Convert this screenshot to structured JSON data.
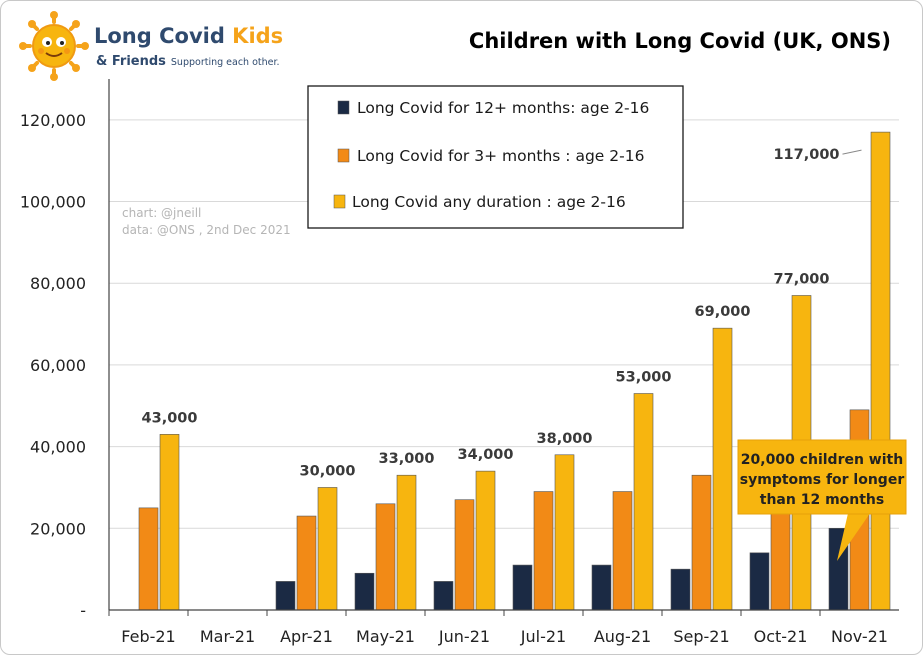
{
  "brand": {
    "name_part1": "Long Covid ",
    "name_part2": "Kids",
    "amp_friends": "& Friends",
    "tagline": "Supporting each other."
  },
  "credits": {
    "line1": "chart: @jneill",
    "line2": "data: @ONS , 2nd Dec 2021"
  },
  "callout": {
    "lines": [
      "20,000 children with",
      "symptoms for longer",
      "than 12 months"
    ]
  },
  "colors": {
    "navy": "#1b2a44",
    "orange": "#f28a16",
    "yellow": "#f7b50f",
    "callout_bg": "#f7b50f",
    "axis": "#444444",
    "grid": "#d9d9d9"
  },
  "chart_data": {
    "type": "bar",
    "title": "Children with Long Covid (UK, ONS)",
    "xlabel": "",
    "ylabel": "",
    "ylim": [
      0,
      130000
    ],
    "y_ticks": [
      0,
      20000,
      40000,
      60000,
      80000,
      100000,
      120000
    ],
    "y_tick_labels": [
      "-",
      "20,000",
      "40,000",
      "60,000",
      "80,000",
      "100,000",
      "120,000"
    ],
    "grid": true,
    "legend_position": "top-center",
    "categories": [
      "Feb-21",
      "Mar-21",
      "Apr-21",
      "May-21",
      "Jun-21",
      "Jul-21",
      "Aug-21",
      "Sep-21",
      "Oct-21",
      "Nov-21"
    ],
    "series": [
      {
        "name": "Long Covid for 12+ months: age 2-16",
        "color": "#1b2a44",
        "values": [
          null,
          null,
          7000,
          9000,
          7000,
          11000,
          11000,
          10000,
          14000,
          20000
        ]
      },
      {
        "name": "Long Covid for 3+ months : age 2-16",
        "color": "#f28a16",
        "values": [
          25000,
          null,
          23000,
          26000,
          27000,
          29000,
          29000,
          33000,
          32000,
          49000
        ]
      },
      {
        "name": "Long Covid any duration : age 2-16",
        "color": "#f7b50f",
        "values": [
          43000,
          null,
          30000,
          33000,
          34000,
          38000,
          53000,
          69000,
          77000,
          117000
        ]
      }
    ],
    "data_labels": [
      "43,000",
      "",
      "30,000",
      "33,000",
      "34,000",
      "38,000",
      "53,000",
      "69,000",
      "77,000",
      "117,000"
    ]
  }
}
